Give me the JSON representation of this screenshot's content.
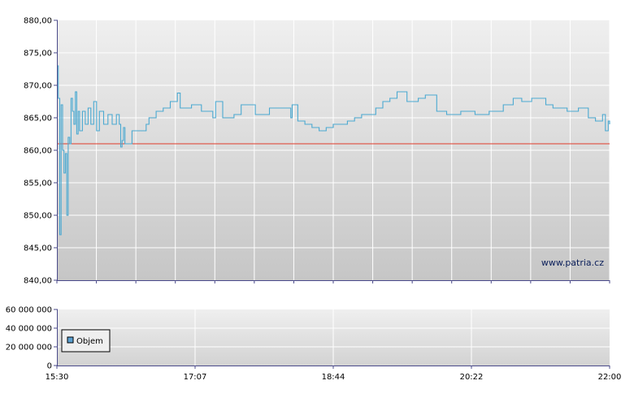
{
  "watermark": "www.patria.cz",
  "legend": {
    "label": "Objem",
    "color": "#5a9fd0"
  },
  "colors": {
    "price_line": "#4ba9d1",
    "reference_line": "#e03a2a",
    "axis": "#4a4a8a"
  },
  "chart_data": [
    {
      "type": "line",
      "title": "",
      "xlabel": "",
      "ylabel": "",
      "ylim": [
        840,
        880
      ],
      "yticks": [
        "880,00",
        "875,00",
        "870,00",
        "865,00",
        "860,00",
        "855,00",
        "850,00",
        "845,00",
        "840,00"
      ],
      "reference_line": {
        "value": 861.0
      },
      "grid": true,
      "x_range": [
        "15:30",
        "22:00"
      ],
      "series": [
        {
          "values": [
            [
              "15:30",
              873.0
            ],
            [
              "15:31",
              868.0
            ],
            [
              "15:32",
              847.0
            ],
            [
              "15:33",
              867.0
            ],
            [
              "15:34",
              860.0
            ],
            [
              "15:35",
              856.5
            ],
            [
              "15:36",
              859.5
            ],
            [
              "15:37",
              850.0
            ],
            [
              "15:38",
              862.0
            ],
            [
              "15:39",
              861.0
            ],
            [
              "15:40",
              868.0
            ],
            [
              "15:41",
              866.0
            ],
            [
              "15:42",
              864.0
            ],
            [
              "15:43",
              869.0
            ],
            [
              "15:44",
              862.5
            ],
            [
              "15:45",
              866.0
            ],
            [
              "15:46",
              863.0
            ],
            [
              "15:48",
              866.0
            ],
            [
              "15:50",
              864.0
            ],
            [
              "15:52",
              866.5
            ],
            [
              "15:54",
              864.0
            ],
            [
              "15:56",
              867.5
            ],
            [
              "15:58",
              863.0
            ],
            [
              "16:00",
              866.0
            ],
            [
              "16:03",
              864.0
            ],
            [
              "16:06",
              865.5
            ],
            [
              "16:09",
              864.0
            ],
            [
              "16:12",
              865.5
            ],
            [
              "16:14",
              864.0
            ],
            [
              "16:15",
              860.5
            ],
            [
              "16:16",
              861.5
            ],
            [
              "16:17",
              863.5
            ],
            [
              "16:18",
              861.0
            ],
            [
              "16:22",
              861.0
            ],
            [
              "16:23",
              863.0
            ],
            [
              "16:30",
              863.0
            ],
            [
              "16:33",
              864.0
            ],
            [
              "16:35",
              865.0
            ],
            [
              "16:40",
              866.0
            ],
            [
              "16:45",
              866.5
            ],
            [
              "16:50",
              867.5
            ],
            [
              "16:55",
              868.8
            ],
            [
              "16:57",
              866.5
            ],
            [
              "17:05",
              867.0
            ],
            [
              "17:12",
              866.0
            ],
            [
              "17:20",
              865.0
            ],
            [
              "17:22",
              867.5
            ],
            [
              "17:27",
              865.0
            ],
            [
              "17:35",
              865.5
            ],
            [
              "17:40",
              867.0
            ],
            [
              "17:50",
              865.5
            ],
            [
              "18:00",
              866.5
            ],
            [
              "18:10",
              866.5
            ],
            [
              "18:15",
              865.0
            ],
            [
              "18:16",
              867.0
            ],
            [
              "18:20",
              864.5
            ],
            [
              "18:25",
              864.0
            ],
            [
              "18:30",
              863.5
            ],
            [
              "18:35",
              863.0
            ],
            [
              "18:40",
              863.5
            ],
            [
              "18:45",
              864.0
            ],
            [
              "18:55",
              864.5
            ],
            [
              "19:00",
              865.0
            ],
            [
              "19:05",
              865.5
            ],
            [
              "19:15",
              866.5
            ],
            [
              "19:20",
              867.5
            ],
            [
              "19:25",
              868.0
            ],
            [
              "19:30",
              869.0
            ],
            [
              "19:37",
              867.5
            ],
            [
              "19:45",
              868.0
            ],
            [
              "19:50",
              868.5
            ],
            [
              "19:58",
              866.0
            ],
            [
              "20:05",
              865.5
            ],
            [
              "20:15",
              866.0
            ],
            [
              "20:25",
              865.5
            ],
            [
              "20:35",
              866.0
            ],
            [
              "20:45",
              867.0
            ],
            [
              "20:52",
              868.0
            ],
            [
              "20:58",
              867.5
            ],
            [
              "21:05",
              868.0
            ],
            [
              "21:15",
              867.0
            ],
            [
              "21:20",
              866.5
            ],
            [
              "21:30",
              866.0
            ],
            [
              "21:38",
              866.5
            ],
            [
              "21:45",
              865.0
            ],
            [
              "21:50",
              864.5
            ],
            [
              "21:55",
              865.5
            ],
            [
              "21:57",
              863.0
            ],
            [
              "21:59",
              864.5
            ],
            [
              "22:00",
              864.0
            ]
          ]
        }
      ]
    },
    {
      "type": "bar",
      "title": "",
      "xlabel": "",
      "ylabel": "",
      "ylim": [
        0,
        60000000
      ],
      "yticks": [
        "60 000 000",
        "40 000 000",
        "20 000 000",
        "0"
      ],
      "xticks": [
        "15:30",
        "17:07",
        "18:44",
        "20:22",
        "22:00"
      ],
      "grid": true,
      "legend_position": "top-left",
      "series": [
        {
          "name": "Objem",
          "values": []
        }
      ]
    }
  ]
}
